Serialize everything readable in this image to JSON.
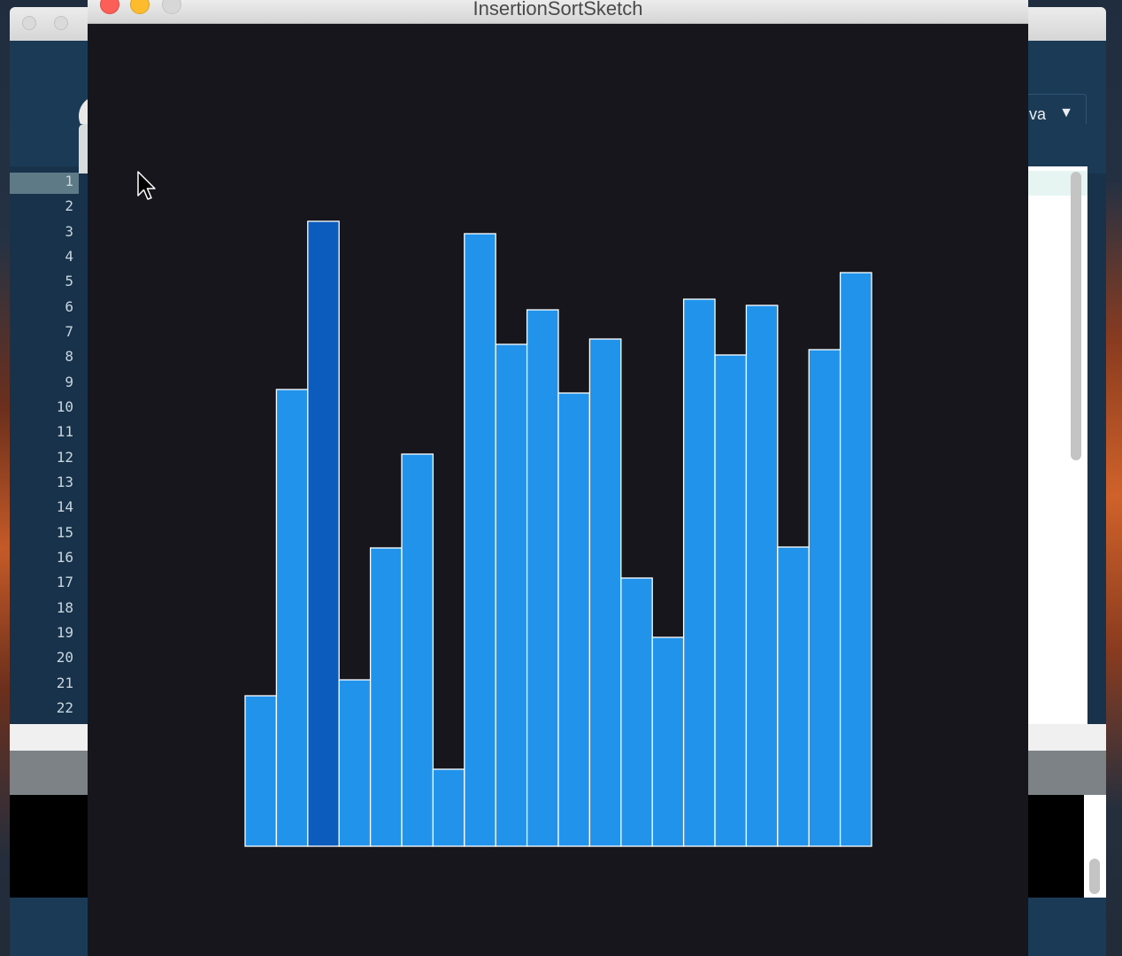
{
  "sketch_window": {
    "title": "InsertionSortSketch"
  },
  "ide": {
    "mode_label": "va",
    "mode_arrow": "▼",
    "line_numbers": [
      "1",
      "2",
      "3",
      "4",
      "5",
      "6",
      "7",
      "8",
      "9",
      "10",
      "11",
      "12",
      "13",
      "14",
      "15",
      "16",
      "17",
      "18",
      "19",
      "20",
      "21",
      "22"
    ]
  },
  "colors": {
    "bar_fill": "#2293ea",
    "bar_highlight": "#0c5cbd",
    "bar_stroke": "#ffffff",
    "canvas_bg": "#17161d"
  },
  "chart_data": {
    "type": "bar",
    "values": [
      170,
      516,
      706,
      188,
      337,
      443,
      87,
      692,
      567,
      606,
      512,
      573,
      303,
      236,
      618,
      555,
      611,
      338,
      561,
      648
    ],
    "highlight_index": 2,
    "ylim": [
      0,
      706
    ]
  }
}
